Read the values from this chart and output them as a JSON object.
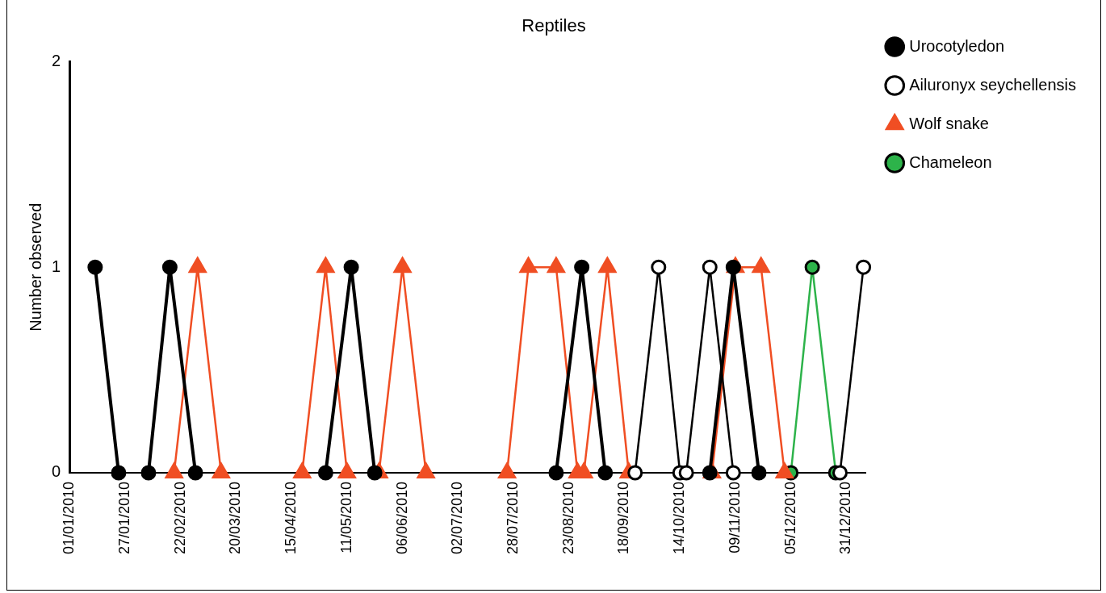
{
  "chart_data": {
    "type": "line",
    "title": "Reptiles",
    "ylabel": "Number observed",
    "xlim": [
      "2010-01-01",
      "2011-01-09"
    ],
    "xticks": [
      {
        "value": "2010-01-01",
        "label": "01/01/2010"
      },
      {
        "value": "2010-01-27",
        "label": "27/01/2010"
      },
      {
        "value": "2010-02-22",
        "label": "22/02/2010"
      },
      {
        "value": "2010-03-20",
        "label": "20/03/2010"
      },
      {
        "value": "2010-04-15",
        "label": "15/04/2010"
      },
      {
        "value": "2010-05-11",
        "label": "11/05/2010"
      },
      {
        "value": "2010-06-06",
        "label": "06/06/2010"
      },
      {
        "value": "2010-07-02",
        "label": "02/07/2010"
      },
      {
        "value": "2010-07-28",
        "label": "28/07/2010"
      },
      {
        "value": "2010-08-23",
        "label": "23/08/2010"
      },
      {
        "value": "2010-09-18",
        "label": "18/09/2010"
      },
      {
        "value": "2010-10-14",
        "label": "14/10/2010"
      },
      {
        "value": "2010-11-09",
        "label": "09/11/2010"
      },
      {
        "value": "2010-12-05",
        "label": "05/12/2010"
      },
      {
        "value": "2010-12-31",
        "label": "31/12/2010"
      }
    ],
    "ylim": [
      0,
      2
    ],
    "yticks": [
      0,
      1,
      2
    ],
    "grid": false,
    "legend": "top right",
    "series": [
      {
        "name": "Urocotyledon",
        "color": "#000000",
        "marker": "circle",
        "x": [
          "2010-01-13",
          "2010-01-24",
          "2010-01-30",
          "2010-02-07",
          "2010-02-17",
          "2010-03-01",
          "2010-04-01",
          "2010-05-01",
          "2010-05-13",
          "2010-05-24",
          "2010-07-01",
          "2010-08-17",
          "2010-08-29",
          "2010-09-09",
          "2010-10-01",
          "2010-10-28",
          "2010-11-08",
          "2010-11-20"
        ],
        "values": [
          1,
          0,
          null,
          0,
          1,
          0,
          null,
          0,
          1,
          0,
          null,
          0,
          1,
          0,
          null,
          0,
          1,
          0
        ]
      },
      {
        "name": "Ailuronyx seychellensis",
        "color": "#000000",
        "marker": "circle",
        "x": [
          "2010-09-23",
          "2010-10-04",
          "2010-10-14",
          "2010-10-17",
          "2010-10-28",
          "2010-11-08",
          "2010-12-01",
          "2010-12-28",
          "2011-01-08"
        ],
        "values": [
          0,
          1,
          0,
          0,
          1,
          0,
          null,
          0,
          1
        ]
      },
      {
        "name": "Wolf snake",
        "color": "#f04e23",
        "marker": "triangle",
        "x": [
          "2010-02-19",
          "2010-03-02",
          "2010-03-13",
          "2010-04-01",
          "2010-04-20",
          "2010-05-01",
          "2010-05-11",
          "2010-05-18",
          "2010-05-26",
          "2010-06-06",
          "2010-06-17",
          "2010-07-01",
          "2010-07-25",
          "2010-08-04",
          "2010-08-17",
          "2010-08-27",
          "2010-08-28",
          "2010-08-30",
          "2010-09-10",
          "2010-09-20",
          "2010-10-10",
          "2010-10-29",
          "2010-11-09",
          "2010-11-21",
          "2010-12-02"
        ],
        "values": [
          0,
          1,
          0,
          null,
          0,
          1,
          0,
          null,
          0,
          1,
          0,
          null,
          0,
          1,
          1,
          0,
          null,
          0,
          1,
          0,
          null,
          0,
          1,
          1,
          0
        ]
      },
      {
        "name": "Chameleon",
        "color": "#2db34a",
        "marker": "circle",
        "x": [
          "2010-12-05",
          "2010-12-15",
          "2010-12-26"
        ],
        "values": [
          0,
          1,
          0
        ]
      }
    ]
  }
}
